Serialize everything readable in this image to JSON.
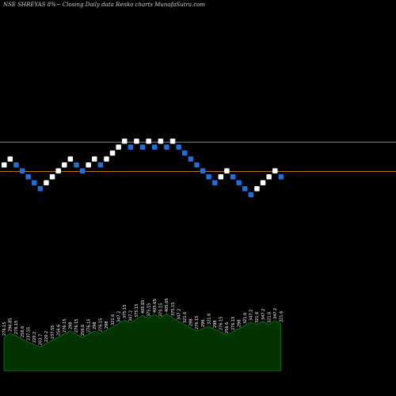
{
  "title": "NSE SHREYAS 8%~  Closing Daily data  Renko  charts MunafaSutra.com",
  "colors": {
    "background": "#000000",
    "up_brick": "#ffffff",
    "down_brick": "#1e6fd9",
    "level_line": "#b8741a",
    "volume_fill": "#033303",
    "volume_edge": "#0f6b0f",
    "label_text": "#ffffff"
  },
  "chart_data": {
    "type": "renko",
    "title": "NSE SHREYAS 8%~  Closing Daily data  Renko  charts MunafaSutra.com",
    "brick_percent": 8,
    "bricks": [
      {
        "level": 0,
        "dir": "up"
      },
      {
        "level": 1,
        "dir": "up"
      },
      {
        "level": 0,
        "dir": "down"
      },
      {
        "level": -1,
        "dir": "down"
      },
      {
        "level": -2,
        "dir": "down"
      },
      {
        "level": -3,
        "dir": "down"
      },
      {
        "level": -4,
        "dir": "down"
      },
      {
        "level": -3,
        "dir": "up"
      },
      {
        "level": -2,
        "dir": "up"
      },
      {
        "level": -1,
        "dir": "up"
      },
      {
        "level": 0,
        "dir": "up"
      },
      {
        "level": 1,
        "dir": "up"
      },
      {
        "level": 0,
        "dir": "down"
      },
      {
        "level": -1,
        "dir": "down"
      },
      {
        "level": 0,
        "dir": "up"
      },
      {
        "level": 1,
        "dir": "up"
      },
      {
        "level": 0,
        "dir": "down"
      },
      {
        "level": 1,
        "dir": "up"
      },
      {
        "level": 2,
        "dir": "up"
      },
      {
        "level": 3,
        "dir": "up"
      },
      {
        "level": 4,
        "dir": "up"
      },
      {
        "level": 3,
        "dir": "down"
      },
      {
        "level": 4,
        "dir": "up"
      },
      {
        "level": 3,
        "dir": "down"
      },
      {
        "level": 4,
        "dir": "up"
      },
      {
        "level": 3,
        "dir": "down"
      },
      {
        "level": 4,
        "dir": "up"
      },
      {
        "level": 3,
        "dir": "down"
      },
      {
        "level": 4,
        "dir": "up"
      },
      {
        "level": 3,
        "dir": "down"
      },
      {
        "level": 2,
        "dir": "down"
      },
      {
        "level": 1,
        "dir": "down"
      },
      {
        "level": 0,
        "dir": "down"
      },
      {
        "level": -1,
        "dir": "down"
      },
      {
        "level": -2,
        "dir": "down"
      },
      {
        "level": -3,
        "dir": "down"
      },
      {
        "level": -2,
        "dir": "up"
      },
      {
        "level": -1,
        "dir": "up"
      },
      {
        "level": -2,
        "dir": "down"
      },
      {
        "level": -3,
        "dir": "down"
      },
      {
        "level": -4,
        "dir": "down"
      },
      {
        "level": -5,
        "dir": "down"
      },
      {
        "level": -4,
        "dir": "up"
      },
      {
        "level": -3,
        "dir": "up"
      },
      {
        "level": -2,
        "dir": "up"
      },
      {
        "level": -1,
        "dir": "up"
      },
      {
        "level": -2,
        "dir": "down"
      }
    ],
    "volume": [
      {
        "label": "276.15",
        "height": 42
      },
      {
        "label": "296.85",
        "height": 47
      },
      {
        "label": "276.15",
        "height": 44
      },
      {
        "label": "256.6",
        "height": 40
      },
      {
        "label": "237.55",
        "height": 36
      },
      {
        "label": "220.2",
        "height": 33
      },
      {
        "label": "203.7",
        "height": 30
      },
      {
        "label": "220.2",
        "height": 34
      },
      {
        "label": "237.55",
        "height": 38
      },
      {
        "label": "256.6",
        "height": 42
      },
      {
        "label": "276.15",
        "height": 46
      },
      {
        "label": "298",
        "height": 50
      },
      {
        "label": "276.15",
        "height": 46
      },
      {
        "label": "256.6",
        "height": 42
      },
      {
        "label": "276.15",
        "height": 46
      },
      {
        "label": "298",
        "height": 50
      },
      {
        "label": "276.15",
        "height": 47
      },
      {
        "label": "298",
        "height": 51
      },
      {
        "label": "321.6",
        "height": 55
      },
      {
        "label": "347.2",
        "height": 59
      },
      {
        "label": "375.15",
        "height": 64
      },
      {
        "label": "347.2",
        "height": 60
      },
      {
        "label": "375.15",
        "height": 65
      },
      {
        "label": "405.65",
        "height": 70
      },
      {
        "label": "375.15",
        "height": 66
      },
      {
        "label": "405.65",
        "height": 71
      },
      {
        "label": "375.15",
        "height": 66
      },
      {
        "label": "405.65",
        "height": 72
      },
      {
        "label": "375.15",
        "height": 67
      },
      {
        "label": "347.2",
        "height": 62
      },
      {
        "label": "321.6",
        "height": 58
      },
      {
        "label": "298",
        "height": 54
      },
      {
        "label": "276.15",
        "height": 50
      },
      {
        "label": "298",
        "height": 53
      },
      {
        "label": "321.6",
        "height": 56
      },
      {
        "label": "298",
        "height": 52
      },
      {
        "label": "276.15",
        "height": 49
      },
      {
        "label": "256.6",
        "height": 45
      },
      {
        "label": "276.15",
        "height": 49
      },
      {
        "label": "298",
        "height": 53
      },
      {
        "label": "321.6",
        "height": 57
      },
      {
        "label": "347.2",
        "height": 61
      },
      {
        "label": "321.6",
        "height": 58
      },
      {
        "label": "347.2",
        "height": 62
      },
      {
        "label": "321.6",
        "height": 58
      },
      {
        "label": "347.2",
        "height": 63
      },
      {
        "label": "321.6",
        "height": 59
      }
    ]
  }
}
